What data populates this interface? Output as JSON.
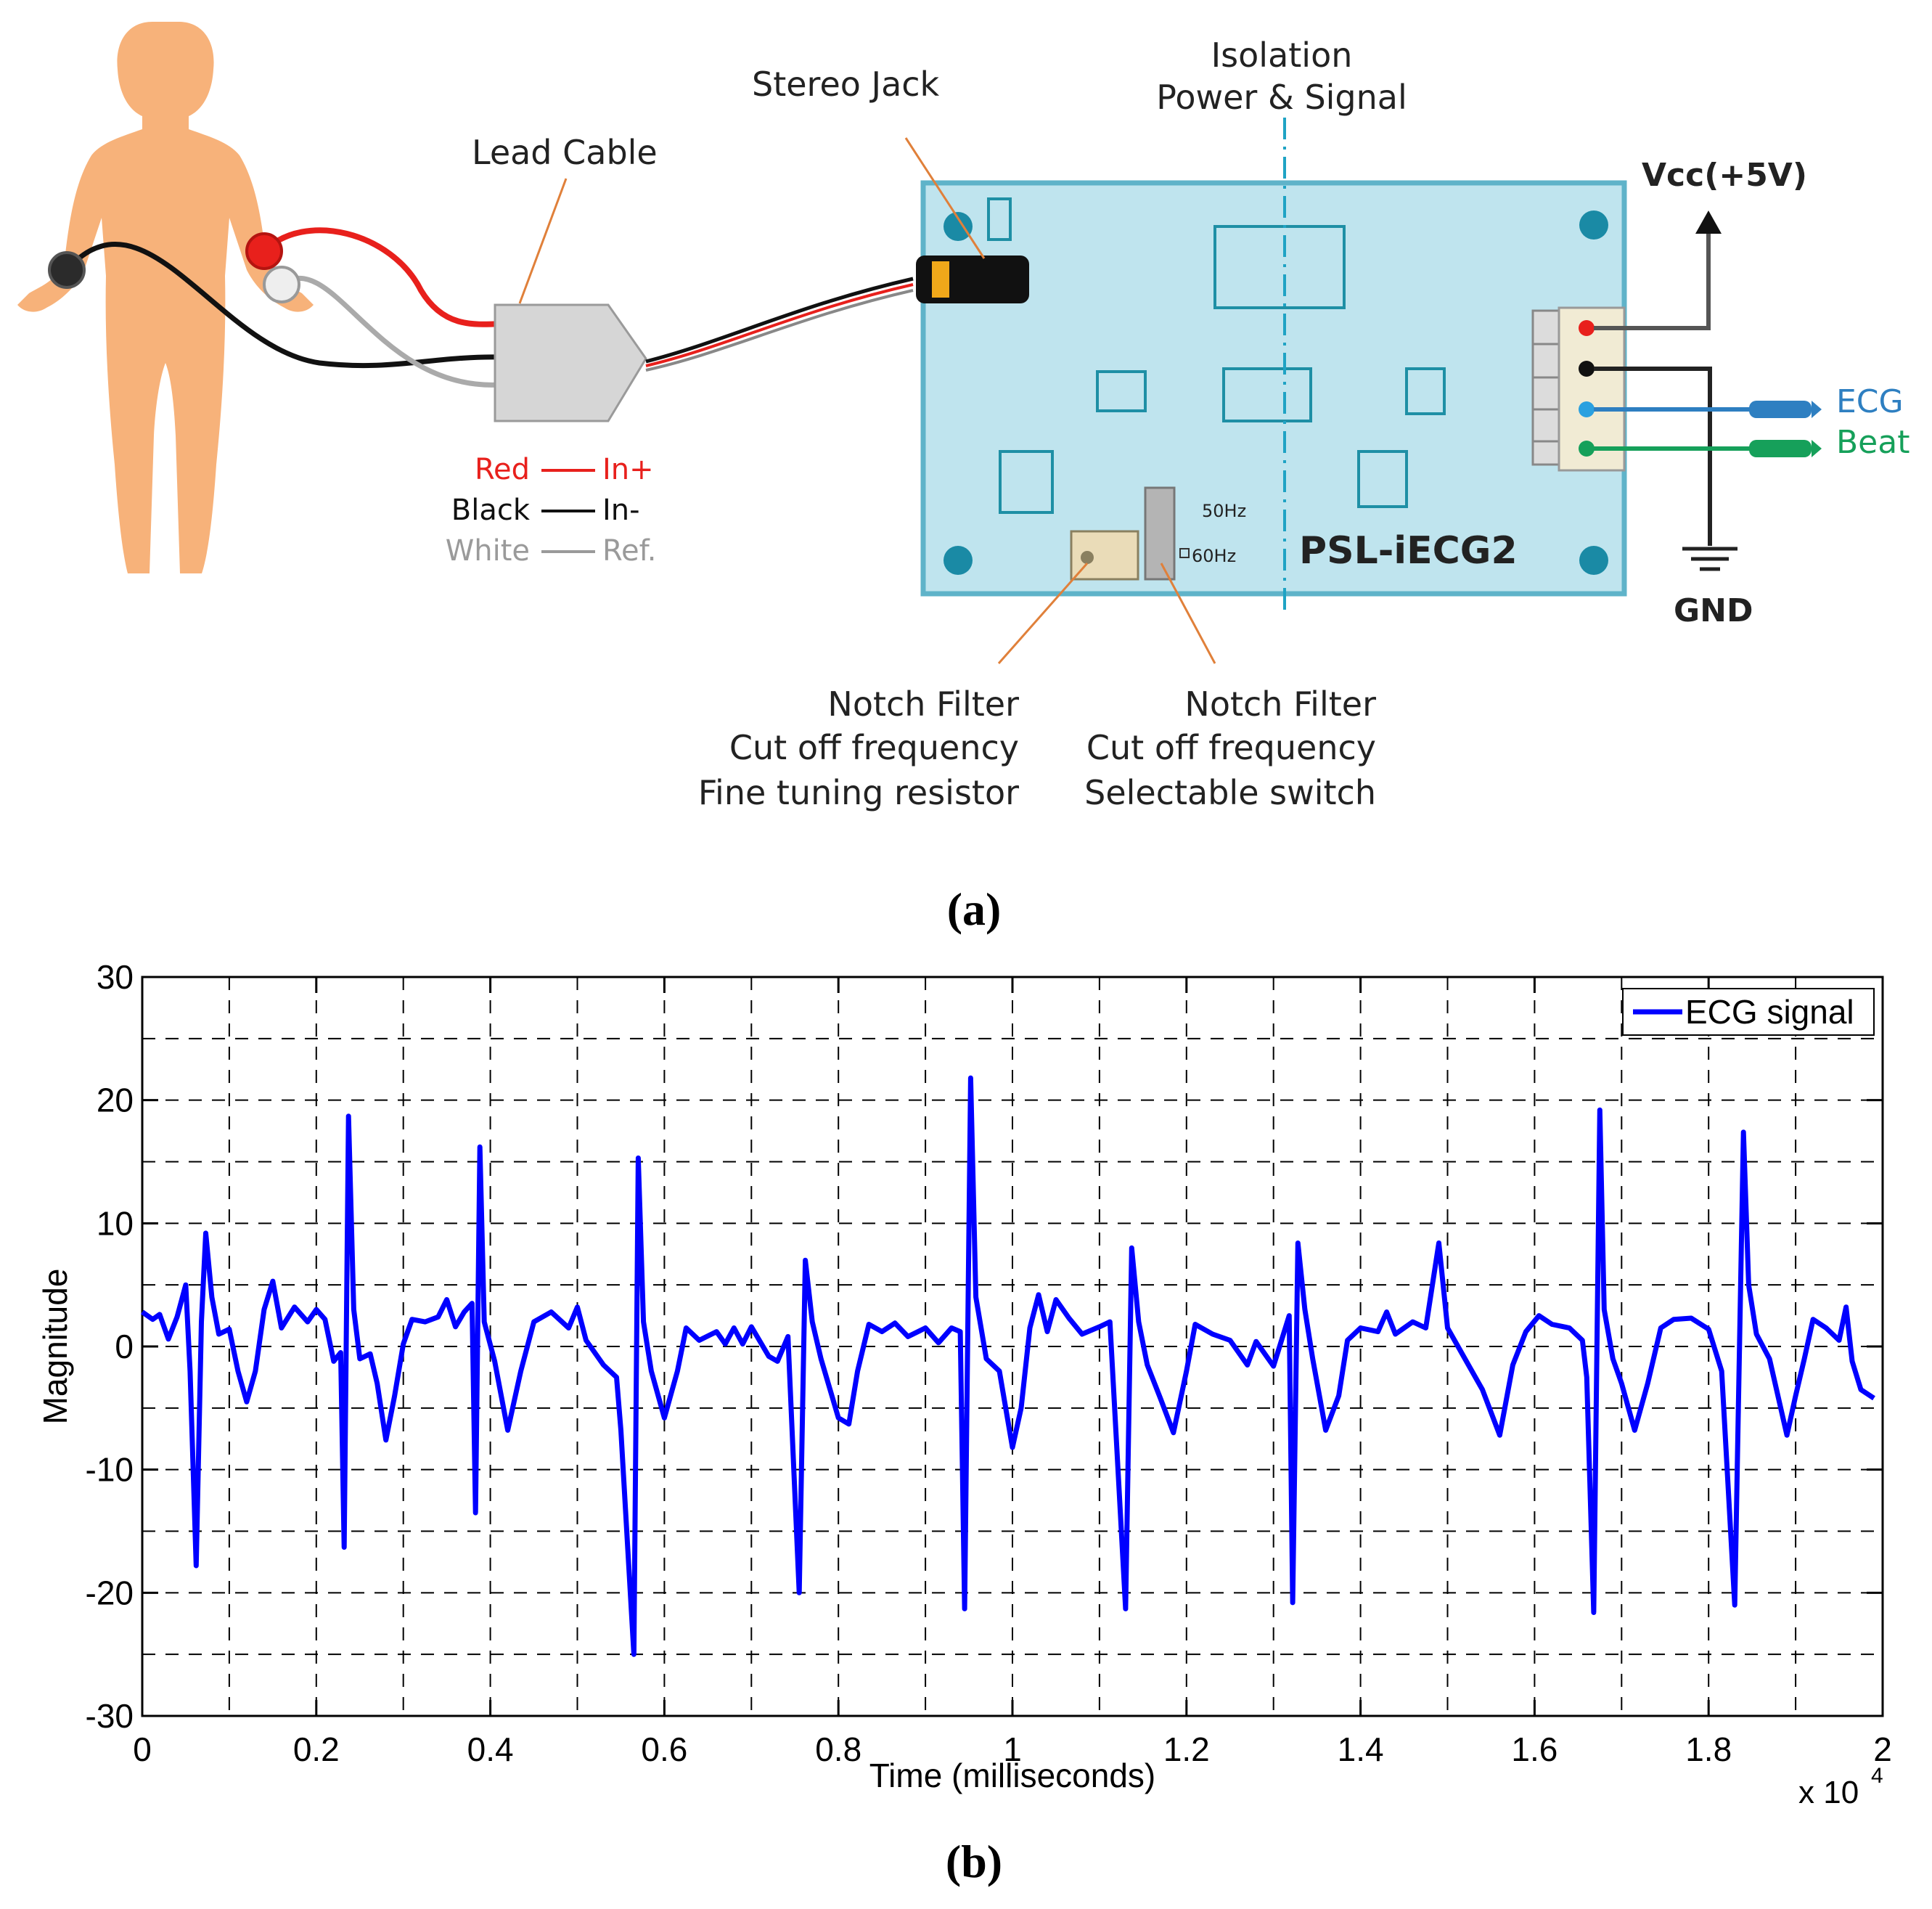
{
  "panel_a": {
    "caption": "(a)",
    "lead_cable_label": "Lead Cable",
    "stereo_jack_label": "Stereo Jack",
    "isolation_label_line1": "Isolation",
    "isolation_label_line2": "Power & Signal",
    "vcc_label": "Vcc(+5V)",
    "gnd_label": "GND",
    "ecg_output_label": "ECG",
    "beat_output_label": "Beat",
    "board_name": "PSL-iECG2",
    "switch_50hz": "50Hz",
    "switch_60hz": "60Hz",
    "wire_legend": [
      {
        "color_name": "Red",
        "signal": "In+",
        "color": "#e8201c"
      },
      {
        "color_name": "Black",
        "signal": "In-",
        "color": "#111111"
      },
      {
        "color_name": "White",
        "signal": "Ref.",
        "color": "#9a9a9a"
      }
    ],
    "notch_resistor_lines": [
      "Notch Filter",
      "Cut off frequency",
      "Fine tuning resistor"
    ],
    "notch_switch_lines": [
      "Notch Filter",
      "Cut off frequency",
      "Selectable switch"
    ],
    "colors": {
      "board": "#bfe4ee",
      "board_edge": "#5fb3c9",
      "component": "#1e8fa5",
      "ecg_wire": "#2e7fc1",
      "beat_wire": "#16a05a",
      "red_wire": "#e8201c",
      "leader": "#e0803a",
      "isolation_line": "#1fa3c4",
      "body": "#f7b27a"
    }
  },
  "panel_b": {
    "caption": "(b)",
    "chart_data": {
      "type": "line",
      "title": "",
      "xlabel": "Time (milliseconds)",
      "ylabel": "Magnitude",
      "x_multiplier_label": "x 10",
      "x_multiplier_exponent": "4",
      "xlim": [
        0,
        2
      ],
      "ylim": [
        -30,
        30
      ],
      "xticks": [
        0,
        0.2,
        0.4,
        0.6,
        0.8,
        1,
        1.2,
        1.4,
        1.6,
        1.8,
        2
      ],
      "xtick_labels": [
        "0",
        "0.2",
        "0.4",
        "0.6",
        "0.8",
        "1",
        "1.2",
        "1.4",
        "1.6",
        "1.8",
        "2"
      ],
      "yticks": [
        -30,
        -20,
        -10,
        0,
        10,
        20,
        30
      ],
      "ytick_labels": [
        "-30",
        "-20",
        "-10",
        "0",
        "10",
        "20",
        "30"
      ],
      "grid": true,
      "legend_position": "top-right",
      "series": [
        {
          "name": "ECG signal",
          "color": "#0000ff",
          "points": [
            [
              0.0,
              2.8
            ],
            [
              0.012,
              2.2
            ],
            [
              0.02,
              2.6
            ],
            [
              0.03,
              0.6
            ],
            [
              0.04,
              2.4
            ],
            [
              0.05,
              5.0
            ],
            [
              0.055,
              -2
            ],
            [
              0.062,
              -17.8
            ],
            [
              0.068,
              2
            ],
            [
              0.073,
              9.2
            ],
            [
              0.08,
              4
            ],
            [
              0.088,
              1
            ],
            [
              0.1,
              1.4
            ],
            [
              0.11,
              -2
            ],
            [
              0.12,
              -4.5
            ],
            [
              0.13,
              -2
            ],
            [
              0.14,
              3
            ],
            [
              0.15,
              5.3
            ],
            [
              0.16,
              1.5
            ],
            [
              0.175,
              3.2
            ],
            [
              0.19,
              2.0
            ],
            [
              0.2,
              3.0
            ],
            [
              0.21,
              2.2
            ],
            [
              0.22,
              -1.2
            ],
            [
              0.228,
              -0.5
            ],
            [
              0.232,
              -16.3
            ],
            [
              0.237,
              18.7
            ],
            [
              0.243,
              3
            ],
            [
              0.25,
              -1
            ],
            [
              0.262,
              -0.6
            ],
            [
              0.27,
              -3
            ],
            [
              0.28,
              -7.6
            ],
            [
              0.29,
              -4
            ],
            [
              0.3,
              0.2
            ],
            [
              0.31,
              2.2
            ],
            [
              0.325,
              2.0
            ],
            [
              0.34,
              2.4
            ],
            [
              0.35,
              3.8
            ],
            [
              0.36,
              1.6
            ],
            [
              0.37,
              2.8
            ],
            [
              0.379,
              3.5
            ],
            [
              0.383,
              -13.5
            ],
            [
              0.388,
              16.2
            ],
            [
              0.393,
              2
            ],
            [
              0.405,
              -1.2
            ],
            [
              0.42,
              -6.8
            ],
            [
              0.435,
              -2
            ],
            [
              0.45,
              2.0
            ],
            [
              0.47,
              2.8
            ],
            [
              0.49,
              1.5
            ],
            [
              0.5,
              3.2
            ],
            [
              0.51,
              0.5
            ],
            [
              0.52,
              -0.5
            ],
            [
              0.53,
              -1.5
            ],
            [
              0.545,
              -2.5
            ],
            [
              0.55,
              -6.8
            ],
            [
              0.565,
              -25.0
            ],
            [
              0.57,
              15.3
            ],
            [
              0.576,
              2
            ],
            [
              0.585,
              -2
            ],
            [
              0.6,
              -5.8
            ],
            [
              0.615,
              -2
            ],
            [
              0.625,
              1.5
            ],
            [
              0.64,
              0.5
            ],
            [
              0.66,
              1.2
            ],
            [
              0.67,
              0.2
            ],
            [
              0.68,
              1.5
            ],
            [
              0.69,
              0.2
            ],
            [
              0.7,
              1.6
            ],
            [
              0.72,
              -0.8
            ],
            [
              0.73,
              -1.2
            ],
            [
              0.742,
              0.8
            ],
            [
              0.755,
              -20.0
            ],
            [
              0.762,
              7.0
            ],
            [
              0.77,
              2
            ],
            [
              0.78,
              -1
            ],
            [
              0.8,
              -5.8
            ],
            [
              0.812,
              -6.3
            ],
            [
              0.822,
              -2
            ],
            [
              0.835,
              1.8
            ],
            [
              0.85,
              1.2
            ],
            [
              0.865,
              1.9
            ],
            [
              0.88,
              0.8
            ],
            [
              0.9,
              1.5
            ],
            [
              0.915,
              0.3
            ],
            [
              0.93,
              1.5
            ],
            [
              0.94,
              1.2
            ],
            [
              0.945,
              -21.3
            ],
            [
              0.952,
              21.8
            ],
            [
              0.958,
              4
            ],
            [
              0.97,
              -1
            ],
            [
              0.985,
              -2
            ],
            [
              1.0,
              -8.2
            ],
            [
              1.01,
              -5
            ],
            [
              1.02,
              1.5
            ],
            [
              1.03,
              4.2
            ],
            [
              1.04,
              1.2
            ],
            [
              1.05,
              3.8
            ],
            [
              1.065,
              2.3
            ],
            [
              1.08,
              1.0
            ],
            [
              1.1,
              1.6
            ],
            [
              1.112,
              2.0
            ],
            [
              1.13,
              -21.3
            ],
            [
              1.137,
              8.0
            ],
            [
              1.145,
              2
            ],
            [
              1.155,
              -1.5
            ],
            [
              1.17,
              -4.2
            ],
            [
              1.185,
              -7.0
            ],
            [
              1.2,
              -2
            ],
            [
              1.21,
              1.8
            ],
            [
              1.23,
              1.0
            ],
            [
              1.25,
              0.5
            ],
            [
              1.27,
              -1.5
            ],
            [
              1.28,
              0.4
            ],
            [
              1.3,
              -1.6
            ],
            [
              1.318,
              2.5
            ],
            [
              1.322,
              -20.8
            ],
            [
              1.328,
              8.4
            ],
            [
              1.336,
              3
            ],
            [
              1.345,
              -1
            ],
            [
              1.36,
              -6.8
            ],
            [
              1.375,
              -4
            ],
            [
              1.385,
              0.5
            ],
            [
              1.4,
              1.5
            ],
            [
              1.42,
              1.2
            ],
            [
              1.43,
              2.8
            ],
            [
              1.44,
              1.0
            ],
            [
              1.46,
              2.0
            ],
            [
              1.475,
              1.5
            ],
            [
              1.49,
              8.4
            ],
            [
              1.5,
              1.5
            ],
            [
              1.52,
              -1
            ],
            [
              1.54,
              -3.5
            ],
            [
              1.56,
              -7.2
            ],
            [
              1.575,
              -1.5
            ],
            [
              1.59,
              1.2
            ],
            [
              1.605,
              2.5
            ],
            [
              1.62,
              1.8
            ],
            [
              1.64,
              1.5
            ],
            [
              1.655,
              0.5
            ],
            [
              1.66,
              -2.5
            ],
            [
              1.668,
              -21.6
            ],
            [
              1.675,
              19.2
            ],
            [
              1.68,
              3
            ],
            [
              1.69,
              -1
            ],
            [
              1.7,
              -3
            ],
            [
              1.715,
              -6.8
            ],
            [
              1.73,
              -3
            ],
            [
              1.745,
              1.5
            ],
            [
              1.76,
              2.2
            ],
            [
              1.78,
              2.3
            ],
            [
              1.8,
              1.4
            ],
            [
              1.815,
              -2
            ],
            [
              1.83,
              -21.0
            ],
            [
              1.84,
              17.4
            ],
            [
              1.846,
              5
            ],
            [
              1.855,
              1
            ],
            [
              1.87,
              -1
            ],
            [
              1.89,
              -7.2
            ],
            [
              1.9,
              -4
            ],
            [
              1.91,
              -1
            ],
            [
              1.92,
              2.2
            ],
            [
              1.935,
              1.5
            ],
            [
              1.95,
              0.5
            ],
            [
              1.958,
              3.2
            ],
            [
              1.965,
              -1.2
            ],
            [
              1.975,
              -3.5
            ],
            [
              1.99,
              -4.2
            ]
          ]
        }
      ]
    }
  }
}
